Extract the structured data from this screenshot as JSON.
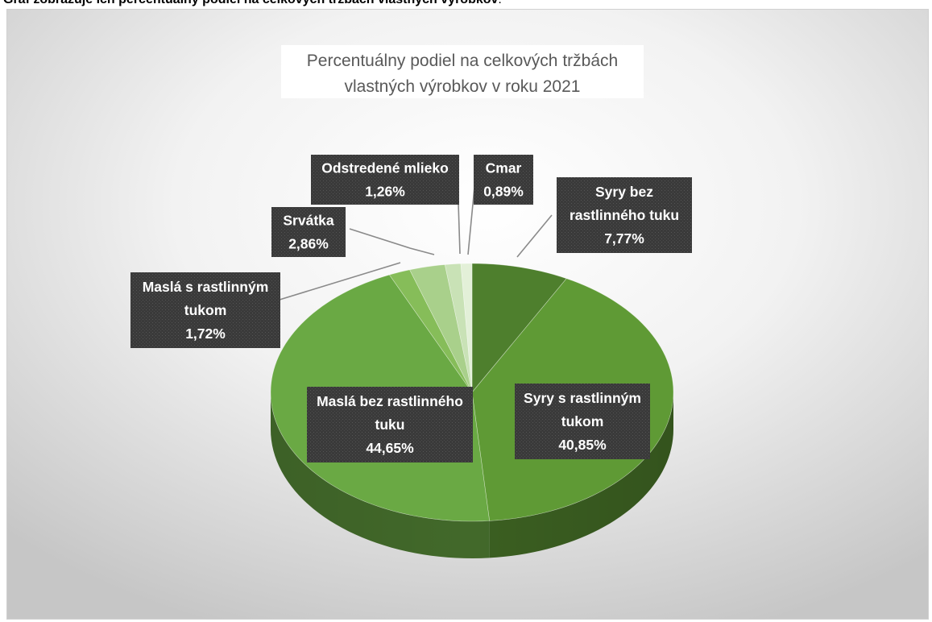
{
  "caption": {
    "bold_text": "Graf zobrazuje ich percentuálny podiel na celkových tržbách vlastných výrobkov",
    "tail_text": "."
  },
  "chart_data": {
    "type": "pie",
    "title": "Percentuálny podiel na celkových tržbách vlastných výrobkov v roku 2021",
    "title_lines": [
      "Percentuálny podiel na celkových tržbách",
      "vlastných výrobkov v roku 2021"
    ],
    "grid": false,
    "legend": "none",
    "label_position": "on-slice and outside with leader lines",
    "slices": [
      {
        "name": "Syry bez rastlinného tuku",
        "label_lines": [
          "Syry bez",
          "rastlinného tuku"
        ],
        "value": 7.77,
        "value_label": "7,77%",
        "color": "#4e7f2d"
      },
      {
        "name": "Syry s rastlinným tukom",
        "label_lines": [
          "Syry s rastlinným",
          "tukom"
        ],
        "value": 40.85,
        "value_label": "40,85%",
        "color": "#5f9a35"
      },
      {
        "name": "Maslá bez rastlinného tuku",
        "label_lines": [
          "Maslá bez rastlinného",
          "tuku"
        ],
        "value": 44.65,
        "value_label": "44,65%",
        "color": "#6aa944"
      },
      {
        "name": "Maslá s rastlinným tukom",
        "label_lines": [
          "Maslá s rastlinným",
          "tukom"
        ],
        "value": 1.72,
        "value_label": "1,72%",
        "color": "#86bd59"
      },
      {
        "name": "Srvátka",
        "label_lines": [
          "Srvátka"
        ],
        "value": 2.86,
        "value_label": "2,86%",
        "color": "#a9d08b"
      },
      {
        "name": "Odstredené mlieko",
        "label_lines": [
          "Odstredené mlieko"
        ],
        "value": 1.26,
        "value_label": "1,26%",
        "color": "#c9e2b6"
      },
      {
        "name": "Cmar",
        "label_lines": [
          "Cmar"
        ],
        "value": 0.89,
        "value_label": "0,89%",
        "color": "#e3f0d8"
      }
    ]
  }
}
